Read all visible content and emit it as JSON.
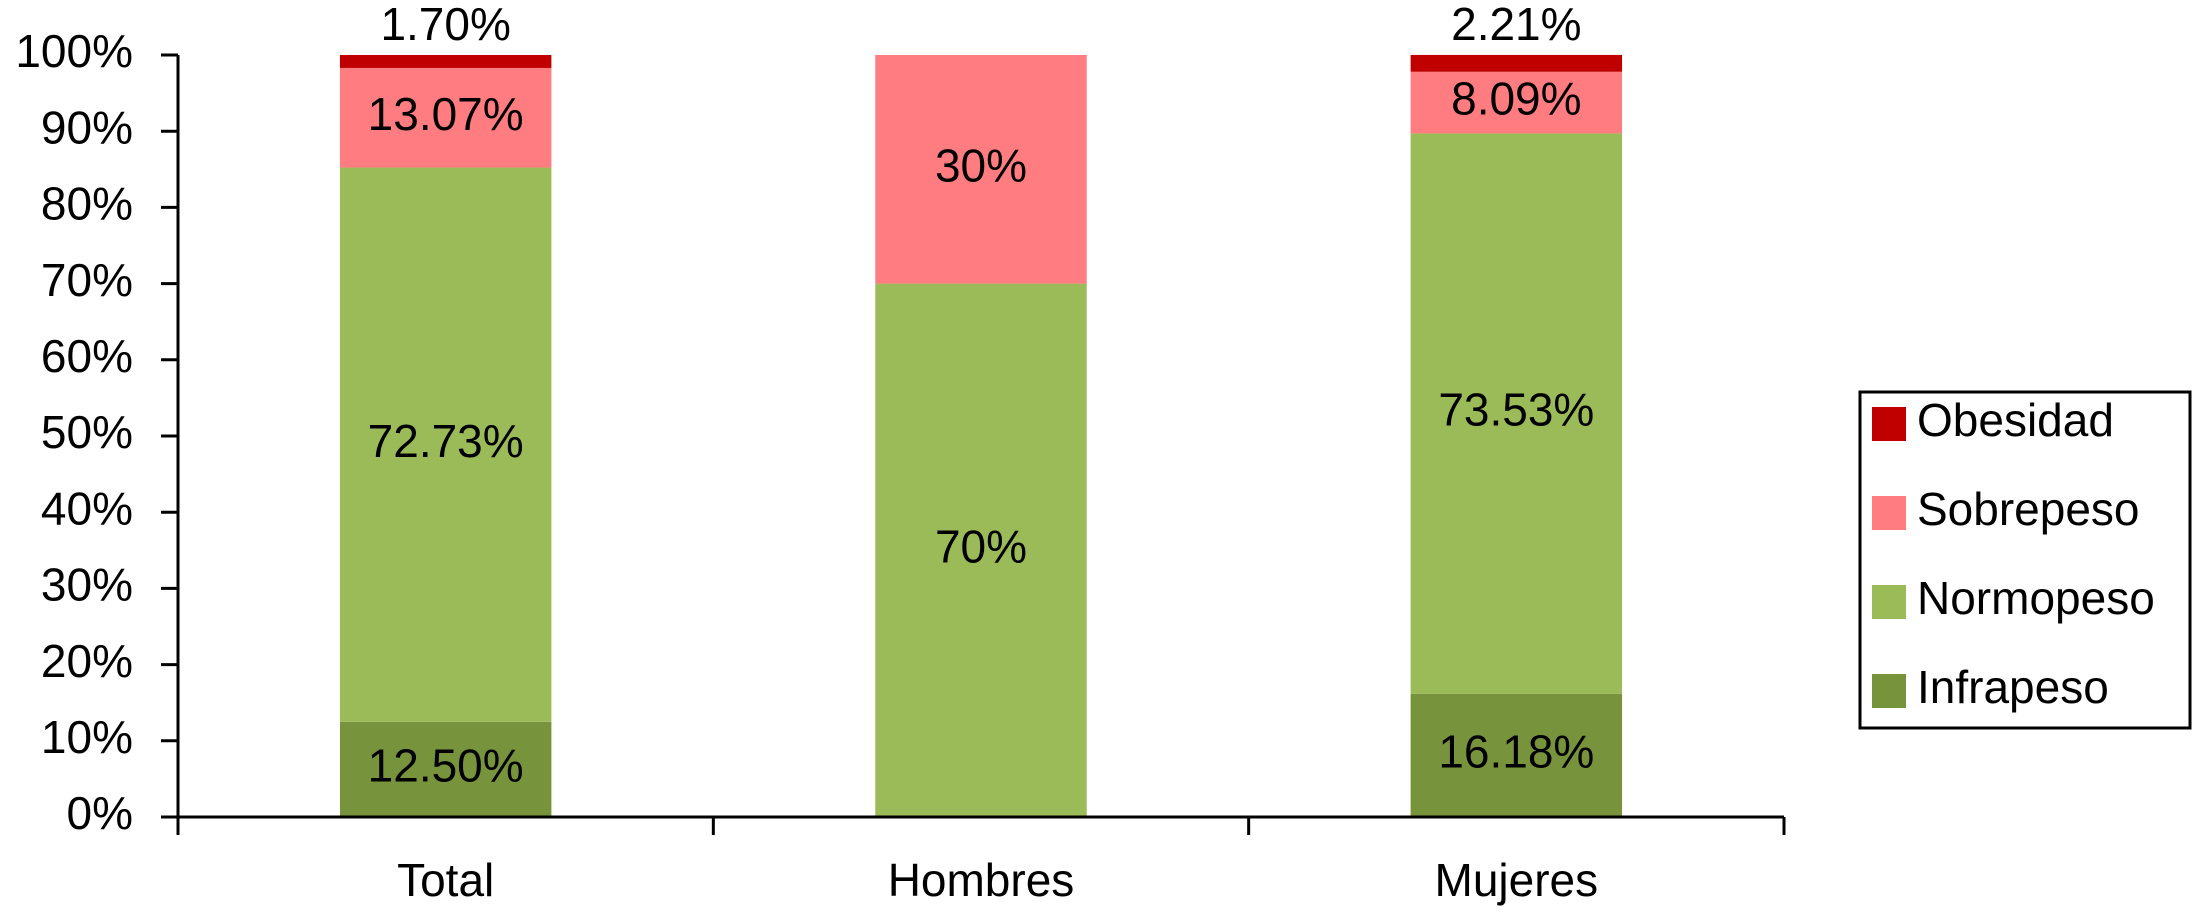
{
  "chart_data": {
    "type": "stacked_bar",
    "categories": [
      "Total",
      "Hombres",
      "Mujeres"
    ],
    "series": [
      {
        "name": "Infrapeso",
        "color": "#77933c",
        "values": [
          12.5,
          0,
          16.18
        ],
        "value_labels": [
          "12.50%",
          null,
          "16.18%"
        ]
      },
      {
        "name": "Normopeso",
        "color": "#9bbb59",
        "values": [
          72.73,
          70,
          73.53
        ],
        "value_labels": [
          "72.73%",
          "70%",
          "73.53%"
        ]
      },
      {
        "name": "Sobrepeso",
        "color": "#ff7c80",
        "values": [
          13.07,
          30,
          8.09
        ],
        "value_labels": [
          "13.07%",
          "30%",
          "8.09%"
        ]
      },
      {
        "name": "Obesidad",
        "color": "#c00000",
        "values": [
          1.7,
          0,
          2.21
        ],
        "value_labels": [
          "1.70%",
          null,
          "2.21%"
        ]
      }
    ],
    "ylim": [
      0,
      100
    ],
    "yticks": [
      {
        "value": 0,
        "label": "0%"
      },
      {
        "value": 10,
        "label": "10%"
      },
      {
        "value": 20,
        "label": "20%"
      },
      {
        "value": 30,
        "label": "30%"
      },
      {
        "value": 40,
        "label": "40%"
      },
      {
        "value": 50,
        "label": "50%"
      },
      {
        "value": 60,
        "label": "60%"
      },
      {
        "value": 70,
        "label": "70%"
      },
      {
        "value": 80,
        "label": "80%"
      },
      {
        "value": 90,
        "label": "90%"
      },
      {
        "value": 100,
        "label": "100%"
      }
    ],
    "grid": false,
    "legend": "right"
  }
}
